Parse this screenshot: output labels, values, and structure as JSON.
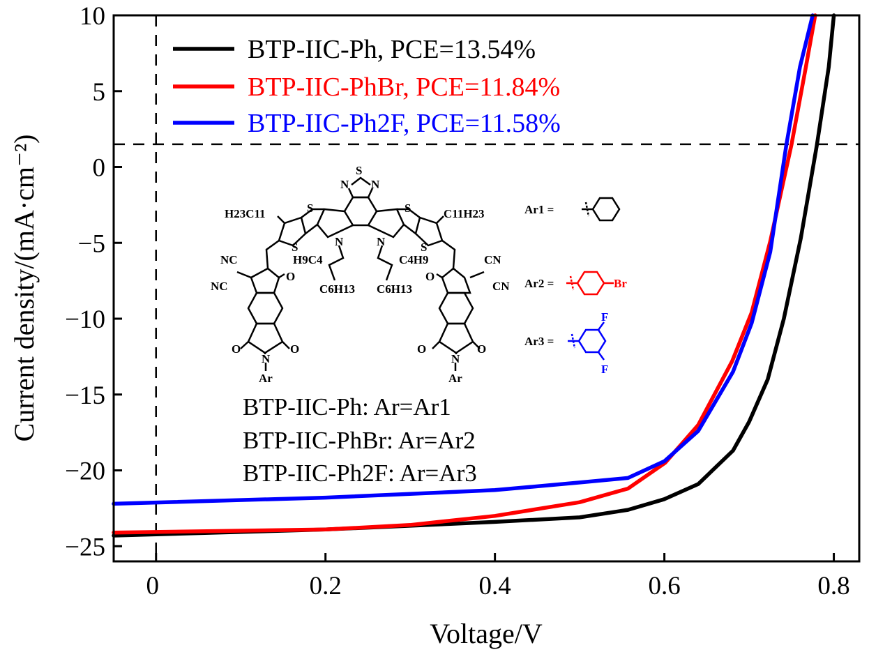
{
  "chart_data": {
    "type": "line",
    "title": "",
    "xlabel": "Voltage/V",
    "ylabel": "Current density/(mA·cm⁻²)",
    "xlim": [
      -0.05,
      0.83
    ],
    "ylim": [
      -26,
      10
    ],
    "xticks": [
      0,
      0.2,
      0.4,
      0.6,
      0.8
    ],
    "xtick_labels": [
      "0",
      "0.2",
      "0.4",
      "0.6",
      "0.8"
    ],
    "yticks": [
      10,
      5,
      0,
      -5,
      -10,
      -15,
      -20,
      -25
    ],
    "ytick_labels": [
      "10",
      "5",
      "0",
      "−5",
      "−10",
      "−15",
      "−20",
      "−25"
    ],
    "grid": false,
    "legend_placement": "top-left",
    "reference_lines": {
      "horizontal_y": 1.5,
      "vertical_x": 0,
      "style": "dashed"
    },
    "series": [
      {
        "name": "BTP-IIC-Ph, PCE=13.54%",
        "color": "#000000",
        "x": [
          -0.05,
          0.2,
          0.4,
          0.5,
          0.557,
          0.6,
          0.64,
          0.681,
          0.7,
          0.722,
          0.741,
          0.761,
          0.78,
          0.794,
          0.8
        ],
        "y": [
          -24.3,
          -23.9,
          -23.4,
          -23.1,
          -22.6,
          -21.9,
          -20.9,
          -18.7,
          -16.8,
          -14.0,
          -10.0,
          -4.7,
          1.46,
          6.6,
          10
        ]
      },
      {
        "name": "BTP-IIC-PhBr, PCE=11.84%",
        "color": "#ff0000",
        "x": [
          -0.05,
          0.2,
          0.3,
          0.4,
          0.5,
          0.557,
          0.601,
          0.64,
          0.68,
          0.703,
          0.725,
          0.75,
          0.767,
          0.778
        ],
        "y": [
          -24.1,
          -23.9,
          -23.6,
          -23.0,
          -22.1,
          -21.2,
          -19.5,
          -17.0,
          -12.8,
          -9.6,
          -4.9,
          1.46,
          6.6,
          10
        ]
      },
      {
        "name": "BTP-IIC-Ph2F, PCE=11.58%",
        "color": "#0000ff",
        "x": [
          -0.05,
          0.2,
          0.4,
          0.5,
          0.557,
          0.6,
          0.64,
          0.681,
          0.703,
          0.725,
          0.744,
          0.76,
          0.775
        ],
        "y": [
          -22.2,
          -21.8,
          -21.3,
          -20.8,
          -20.5,
          -19.4,
          -17.4,
          -13.5,
          -10.3,
          -5.6,
          1.46,
          6.6,
          10
        ]
      }
    ]
  },
  "annotations": {
    "compounds": [
      "BTP-IIC-Ph: Ar=Ar1",
      "BTP-IIC-PhBr: Ar=Ar2",
      "BTP-IIC-Ph2F: Ar=Ar3"
    ]
  },
  "structure": {
    "atoms": {
      "S": "S",
      "N": "N",
      "O": "O",
      "NC": "NC",
      "CN": "CN",
      "Ar": "Ar",
      "Br": "Br",
      "F": "F"
    },
    "side_chains": {
      "c11_left": "H23C11",
      "c11_right": "C11H23",
      "c4_left": "H9C4",
      "c4_right": "C4H9",
      "c6": "C6H13"
    },
    "substituents": [
      {
        "label": "Ar1 =",
        "group": "phenyl",
        "color": "#000000"
      },
      {
        "label": "Ar2 =",
        "group": "4-bromophenyl",
        "color": "#ff0000"
      },
      {
        "label": "Ar3 =",
        "group": "3,5-difluorophenyl",
        "color": "#0000ff"
      }
    ]
  }
}
